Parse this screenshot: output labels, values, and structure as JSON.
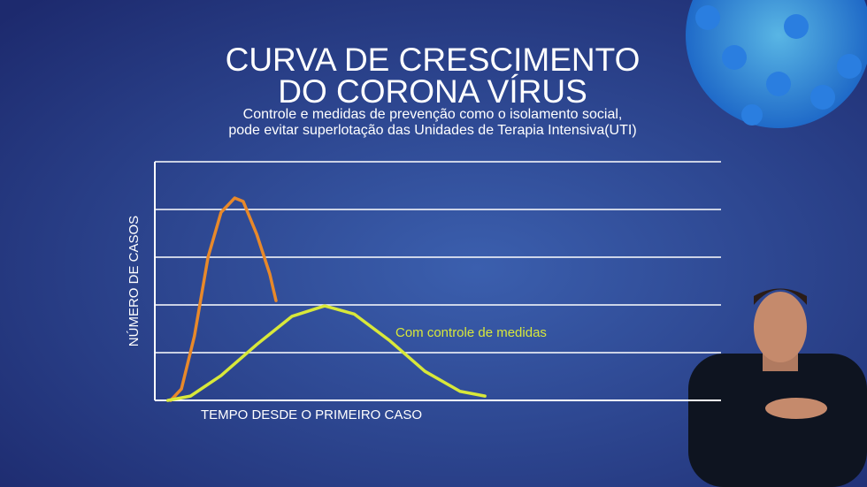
{
  "chart_data": {
    "type": "line",
    "title": [
      "CURVA DE CRESCIMENTO",
      "DO CORONA VÍRUS"
    ],
    "subtitle": [
      "Controle e medidas de prevenção como o isolamento social,",
      "pode evitar superlotação das Unidades de Terapia Intensiva(UTI)"
    ],
    "x_label": "TEMPO DESDE O PRIMEIRO CASO",
    "y_label": "NÚMERO DE CASOS",
    "xlim": [
      0,
      10
    ],
    "ylim": [
      0,
      5
    ],
    "yticks": [
      1,
      2,
      3,
      4,
      5
    ],
    "grid": true,
    "series": [
      {
        "color": "#e8892a",
        "x": [
          0.28,
          0.47,
          0.7,
          0.94,
          1.17,
          1.41,
          1.56,
          1.8,
          2.03,
          2.14
        ],
        "values": [
          0,
          0.24,
          1.35,
          3.0,
          3.94,
          4.24,
          4.17,
          3.48,
          2.65,
          2.09
        ]
      },
      {
        "name": "Com controle de medidas",
        "color": "#d8e83a",
        "x": [
          0.23,
          0.63,
          1.17,
          1.8,
          2.42,
          3.0,
          3.52,
          4.14,
          4.77,
          5.39,
          5.83
        ],
        "values": [
          0,
          0.09,
          0.52,
          1.17,
          1.76,
          1.98,
          1.81,
          1.26,
          0.61,
          0.19,
          0.09
        ]
      }
    ]
  }
}
